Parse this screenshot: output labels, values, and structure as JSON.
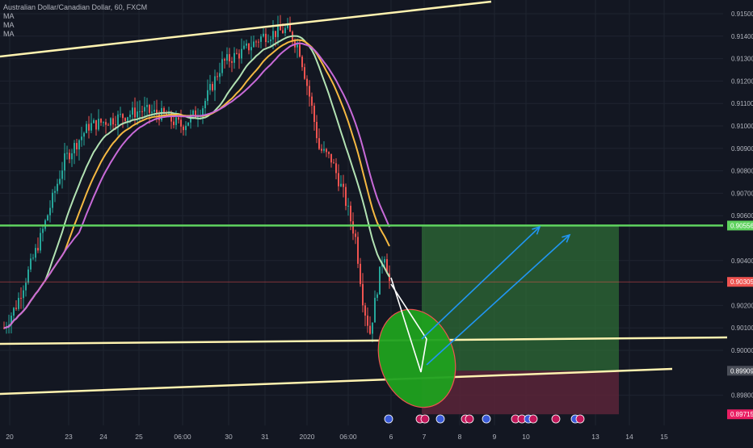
{
  "header": {
    "title": "Australian Dollar/Canadian Dollar, 60, FXCM",
    "indicators": [
      "MA",
      "MA",
      "MA"
    ]
  },
  "colors": {
    "background": "#131722",
    "grid": "#1f2430",
    "axis_text": "#b2b5be",
    "candle_up": "#26a69a",
    "candle_down": "#ef5350",
    "ma_fast": "#b2e2b3",
    "ma_mid": "#f5b942",
    "ma_slow": "#c86ad8",
    "trendline": "#fff3b0",
    "target_line": "#5fd35f",
    "target_zone": "#2e6b35",
    "stop_zone": "#5a2438",
    "current_price_line": "#ef5350",
    "projection_arrow": "#2196f3",
    "highlight_circle": "#1fa11f"
  },
  "chart_data": {
    "type": "candlestick",
    "title": "Australian Dollar/Canadian Dollar, 60, FXCM",
    "ylim": [
      0.8969,
      0.9155
    ],
    "y_ticks": [
      "0.91500",
      "0.91400",
      "0.91300",
      "0.91200",
      "0.91100",
      "0.91000",
      "0.90900",
      "0.90800",
      "0.90700",
      "0.90600",
      "0.90400",
      "0.90200",
      "0.90100",
      "0.90000",
      "0.89800"
    ],
    "x_ticks": [
      "20",
      "23",
      "24",
      "25",
      "06:00",
      "30",
      "31",
      "2020",
      "06:00",
      "6",
      "7",
      "8",
      "9",
      "10",
      "13",
      "14",
      "15"
    ],
    "price_labels": [
      {
        "value": "0.90556",
        "role": "target",
        "color": "#5fd35f"
      },
      {
        "value": "0.90305",
        "role": "current",
        "color": "#ef5350"
      },
      {
        "value": "0.89909",
        "role": "entry",
        "color": "#e0e0e0"
      },
      {
        "value": "0.89715",
        "role": "stop",
        "color": "#e91e63"
      }
    ],
    "candles_summary": {
      "start_price": 0.9005,
      "peak_price": 0.9148,
      "low_price": 0.9005,
      "last_price": 0.90305
    },
    "ma_series": [
      {
        "role": "fast",
        "color": "#b2e2b3"
      },
      {
        "role": "mid",
        "color": "#f5b942"
      },
      {
        "role": "slow",
        "color": "#c86ad8"
      }
    ],
    "grid": true,
    "legend_position": "top-left"
  }
}
